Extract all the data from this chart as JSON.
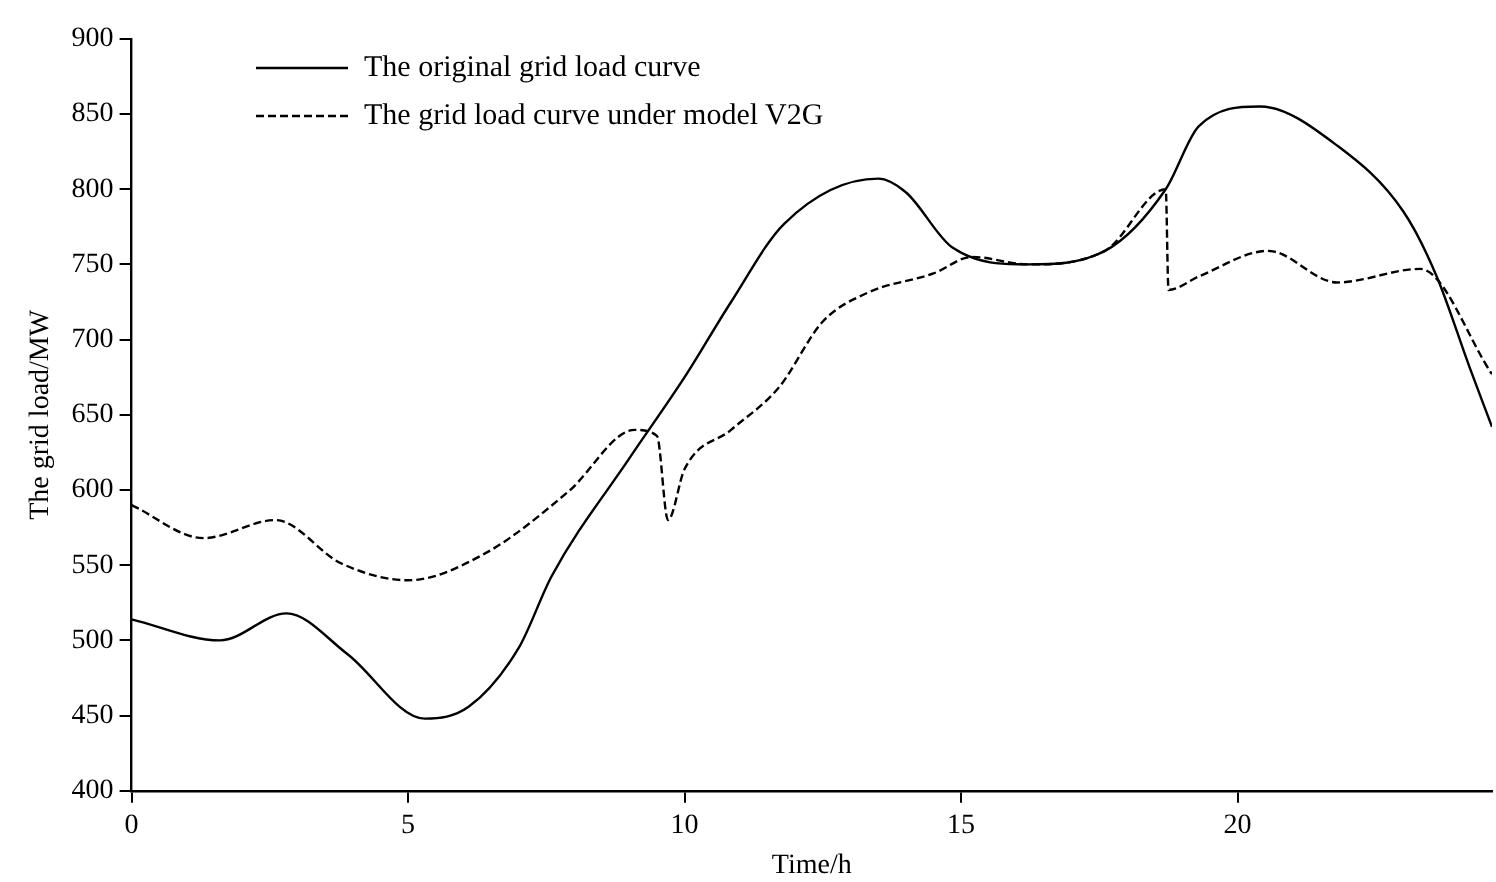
{
  "chart_data": {
    "type": "line",
    "xlabel": "Time/h",
    "ylabel": "The grid load/MW",
    "xlim": [
      0,
      24.6
    ],
    "xticks": [
      0,
      5,
      10,
      15,
      20
    ],
    "ylim": [
      400,
      900
    ],
    "yticks": [
      400,
      450,
      500,
      550,
      600,
      650,
      700,
      750,
      800,
      850,
      900
    ],
    "grid": false,
    "legend": "top left",
    "marker": "none",
    "series": [
      {
        "name": "The original grid load curve",
        "color": "#000000",
        "line_style": "solid",
        "x": [
          0,
          1.6,
          2.8,
          3.9,
          5.3,
          6.1,
          7.0,
          7.6,
          9.0,
          10,
          10.84,
          11.8,
          13.5,
          14.0,
          14.85,
          16.2,
          17.6,
          18.7,
          19.3,
          20.4,
          21.8,
          23.0,
          23.6,
          24.2,
          24.6
        ],
        "values": [
          514,
          500,
          518,
          491,
          448,
          456,
          495,
          543,
          621,
          675,
          725,
          777,
          807,
          798,
          761,
          750,
          759,
          800,
          842,
          855,
          829,
          785,
          742,
          681,
          642
        ]
      },
      {
        "name": "The grid load curve under model V2G",
        "color": "#000000",
        "line_style": "dashed",
        "x": [
          0,
          1.3,
          2.6,
          3.8,
          5.0,
          6.4,
          7.9,
          9.1,
          9.5,
          9.7,
          10,
          10.84,
          11.7,
          12.5,
          13.3,
          14.5,
          15.2,
          16.2,
          17.6,
          18.7,
          18.75,
          19.3,
          20.55,
          21.8,
          23.3,
          24.6
        ],
        "values": [
          590,
          568,
          580,
          551,
          540,
          558,
          599,
          640,
          636,
          580,
          614,
          640,
          668,
          712,
          731,
          744,
          755,
          750,
          759,
          800,
          733,
          742,
          759,
          738,
          747,
          677
        ]
      }
    ]
  }
}
